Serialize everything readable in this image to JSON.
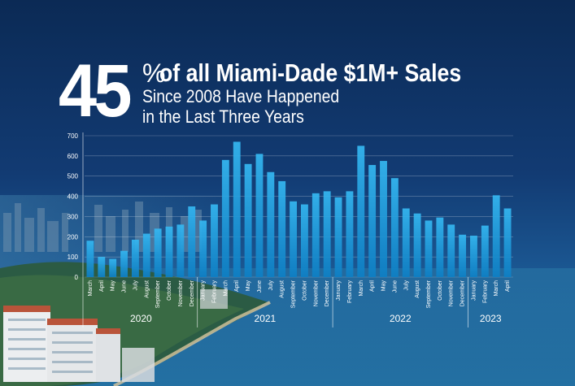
{
  "headline": {
    "number": "45",
    "percent": "%",
    "title": "of all Miami-Dade $1M+ Sales",
    "subtitle_line1": "Since 2008 Have Happened",
    "subtitle_line2": "in the Last Three Years"
  },
  "chart_data": {
    "type": "bar",
    "ylim": [
      0,
      700
    ],
    "yticks": [
      0,
      100,
      200,
      300,
      400,
      500,
      600,
      700
    ],
    "grid": true,
    "bar_color": "#1ea3e6",
    "categories": [
      "March",
      "April",
      "May",
      "June",
      "July",
      "August",
      "September",
      "October",
      "November",
      "December",
      "January",
      "February",
      "March",
      "April",
      "May",
      "June",
      "July",
      "August",
      "September",
      "October",
      "November",
      "December",
      "January",
      "February",
      "March",
      "April",
      "May",
      "June",
      "July",
      "August",
      "September",
      "October",
      "November",
      "December",
      "January",
      "February",
      "March",
      "April"
    ],
    "values": [
      180,
      100,
      90,
      130,
      185,
      215,
      240,
      250,
      260,
      350,
      280,
      360,
      580,
      670,
      560,
      610,
      520,
      475,
      375,
      360,
      415,
      425,
      395,
      425,
      650,
      555,
      575,
      490,
      340,
      315,
      280,
      295,
      260,
      210,
      205,
      255,
      405,
      340
    ],
    "year_groups": [
      {
        "label": "2020",
        "start": 0,
        "end": 9
      },
      {
        "label": "2021",
        "start": 10,
        "end": 21
      },
      {
        "label": "2022",
        "start": 22,
        "end": 33
      },
      {
        "label": "2023",
        "start": 34,
        "end": 37
      }
    ]
  },
  "colors": {
    "text": "#ffffff",
    "grid": "#ffffff",
    "bar_top": "#35b8f2",
    "bar_bottom": "#0e7fc4"
  }
}
